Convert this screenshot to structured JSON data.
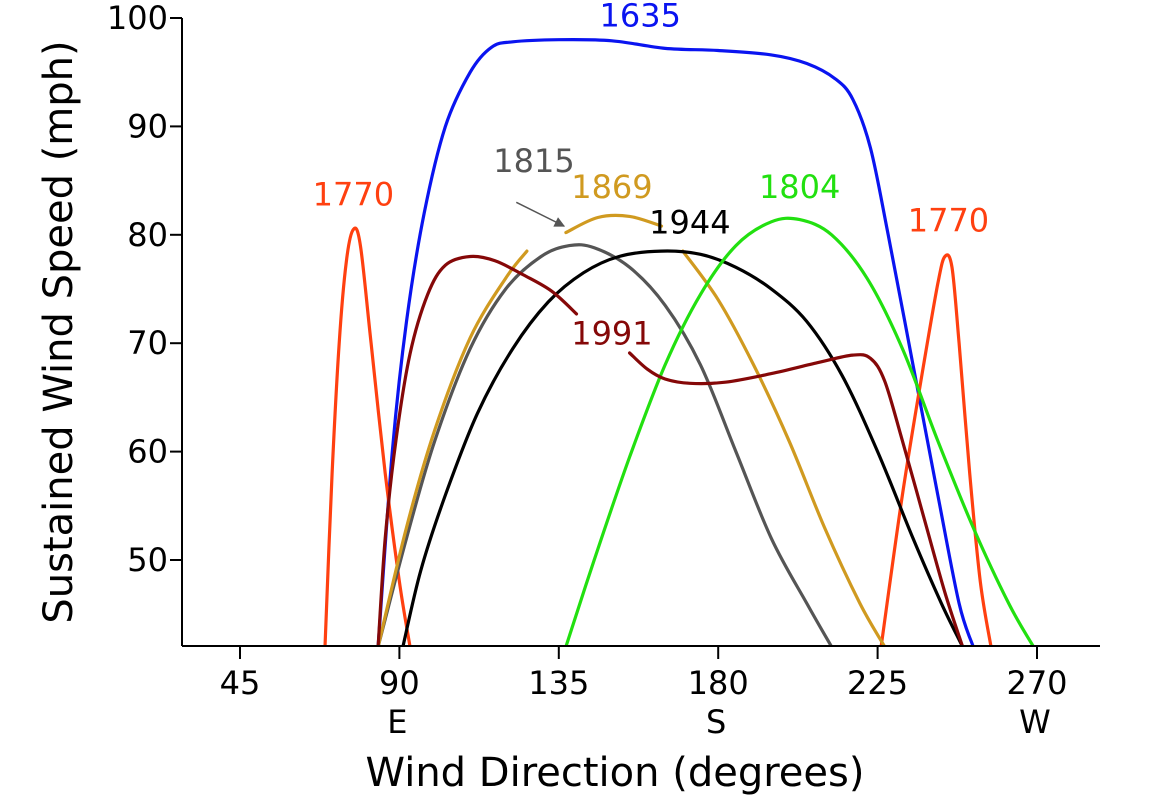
{
  "chart_data": {
    "type": "line",
    "title": "",
    "xlabel": "Wind Direction (degrees)",
    "ylabel": "Sustained Wind Speed (mph)",
    "xlim": [
      22,
      283
    ],
    "ylim": [
      42,
      100
    ],
    "grid": false,
    "legend": "inline labels",
    "x_ticks": [
      45,
      90,
      135,
      180,
      225,
      270
    ],
    "x_tick_labels": [
      "45",
      "90",
      "135",
      "180",
      "225",
      "270"
    ],
    "x_compass_labels": [
      {
        "x": 90,
        "label": "E"
      },
      {
        "x": 180,
        "label": "S"
      },
      {
        "x": 270,
        "label": "W"
      }
    ],
    "y_ticks": [
      50,
      60,
      70,
      80,
      90,
      100
    ],
    "y_tick_labels": [
      "50",
      "60",
      "70",
      "80",
      "90",
      "100"
    ],
    "series": [
      {
        "name": "1635",
        "color": "#0a14f0",
        "label": {
          "text": "1635",
          "x": 158,
          "y": 99.2
        },
        "segments": [
          [
            [
              84,
              42
            ],
            [
              88,
              60
            ],
            [
              92,
              72
            ],
            [
              97,
              82
            ],
            [
              103,
              90
            ],
            [
              110,
              95
            ],
            [
              116,
              97.3
            ],
            [
              122,
              97.8
            ],
            [
              135,
              98
            ],
            [
              150,
              97.9
            ],
            [
              165,
              97.2
            ],
            [
              180,
              97
            ],
            [
              195,
              96.6
            ],
            [
              205,
              95.8
            ],
            [
              213,
              94.4
            ],
            [
              218,
              92.5
            ],
            [
              223,
              88
            ],
            [
              228,
              80
            ],
            [
              235,
              68
            ],
            [
              242,
              56
            ],
            [
              248,
              46
            ],
            [
              252,
              42
            ]
          ]
        ]
      },
      {
        "name": "1770",
        "color": "#ff4010",
        "label": {
          "text": "1770",
          "x": 77,
          "y": 82.7
        },
        "segments": [
          [
            [
              69,
              42
            ],
            [
              71,
              58
            ],
            [
              73,
              70
            ],
            [
              75,
              77.5
            ],
            [
              77,
              80.5
            ],
            [
              79,
              79
            ],
            [
              82,
              70
            ],
            [
              86,
              58
            ],
            [
              90,
              48
            ],
            [
              93,
              42
            ]
          ]
        ]
      },
      {
        "name": "1770",
        "color": "#ff4010",
        "label": {
          "text": "1770",
          "x": 245,
          "y": 80.3
        },
        "segments": [
          [
            [
              226,
              42
            ],
            [
              232,
              56
            ],
            [
              238,
              68
            ],
            [
              242,
              75.5
            ],
            [
              244,
              78
            ],
            [
              246,
              77
            ],
            [
              248,
              70
            ],
            [
              251,
              58
            ],
            [
              254,
              48
            ],
            [
              257,
              42
            ]
          ]
        ]
      },
      {
        "name": "1815",
        "color": "#555555",
        "label": {
          "text": "1815",
          "x": 128,
          "y": 85.8
        },
        "arrow": {
          "from": [
            123,
            83
          ],
          "to": [
            136.5,
            80.8
          ]
        },
        "segments": [
          [
            [
              84,
              42
            ],
            [
              92,
              52
            ],
            [
              100,
              61
            ],
            [
              110,
              69.5
            ],
            [
              120,
              75
            ],
            [
              130,
              78
            ],
            [
              138,
              79
            ],
            [
              145,
              78.8
            ],
            [
              155,
              77
            ],
            [
              165,
              73.5
            ],
            [
              175,
              68
            ],
            [
              185,
              60
            ],
            [
              195,
              52
            ],
            [
              205,
              46
            ],
            [
              212,
              42
            ]
          ]
        ]
      },
      {
        "name": "1869",
        "color": "#d09a20",
        "label": {
          "text": "1869",
          "x": 150,
          "y": 83.4
        },
        "segments": [
          [
            [
              84,
              42
            ],
            [
              92,
              53
            ],
            [
              100,
              62
            ],
            [
              110,
              70.5
            ],
            [
              120,
              76
            ],
            [
              126,
              78.5
            ]
          ],
          [
            [
              137,
              80.2
            ],
            [
              146,
              81.6
            ],
            [
              155,
              81.7
            ],
            [
              164,
              80.8
            ]
          ],
          [
            [
              170,
              78.5
            ],
            [
              180,
              74
            ],
            [
              190,
              68
            ],
            [
              200,
              61
            ],
            [
              210,
              53
            ],
            [
              220,
              46
            ],
            [
              227,
              42
            ]
          ]
        ]
      },
      {
        "name": "1944",
        "color": "#000000",
        "label": {
          "text": "1944",
          "x": 172,
          "y": 80.1
        },
        "segments": [
          [
            [
              91,
              42
            ],
            [
              96,
              49
            ],
            [
              103,
              56
            ],
            [
              112,
              63.5
            ],
            [
              122,
              69.5
            ],
            [
              132,
              73.8
            ],
            [
              142,
              76.5
            ],
            [
              152,
              78
            ],
            [
              164,
              78.5
            ],
            [
              175,
              78.2
            ],
            [
              185,
              77
            ],
            [
              195,
              75
            ],
            [
              205,
              72
            ],
            [
              215,
              67
            ],
            [
              225,
              60
            ],
            [
              235,
              52
            ],
            [
              243,
              46
            ],
            [
              249,
              42
            ]
          ]
        ]
      },
      {
        "name": "1804",
        "color": "#22e010",
        "label": {
          "text": "1804",
          "x": 203,
          "y": 83.4
        },
        "segments": [
          [
            [
              137,
              42
            ],
            [
              145,
              50
            ],
            [
              155,
              59.5
            ],
            [
              165,
              68
            ],
            [
              175,
              74.5
            ],
            [
              185,
              79
            ],
            [
              195,
              81.2
            ],
            [
              203,
              81.4
            ],
            [
              212,
              80
            ],
            [
              222,
              76
            ],
            [
              232,
              69.5
            ],
            [
              242,
              61
            ],
            [
              252,
              53
            ],
            [
              262,
              46
            ],
            [
              269,
              42
            ]
          ]
        ]
      },
      {
        "name": "1991",
        "color": "#850808",
        "label": {
          "text": "1991",
          "x": 150,
          "y": 69.9
        },
        "segments": [
          [
            [
              84,
              42
            ],
            [
              86,
              52
            ],
            [
              89,
              61
            ],
            [
              93,
              69
            ],
            [
              98,
              74.5
            ],
            [
              103,
              77.2
            ],
            [
              110,
              78
            ],
            [
              117,
              77.6
            ],
            [
              125,
              76.3
            ],
            [
              133,
              74.8
            ],
            [
              140,
              72.7
            ]
          ],
          [
            [
              155,
              69.1
            ],
            [
              160,
              67.6
            ],
            [
              165,
              66.7
            ],
            [
              172,
              66.3
            ],
            [
              182,
              66.4
            ],
            [
              195,
              67.2
            ],
            [
              208,
              68.2
            ],
            [
              218,
              68.9
            ],
            [
              223,
              68.6
            ],
            [
              227,
              66.5
            ],
            [
              232,
              61
            ],
            [
              238,
              54
            ],
            [
              244,
              47
            ],
            [
              249,
              42
            ]
          ]
        ]
      }
    ]
  }
}
